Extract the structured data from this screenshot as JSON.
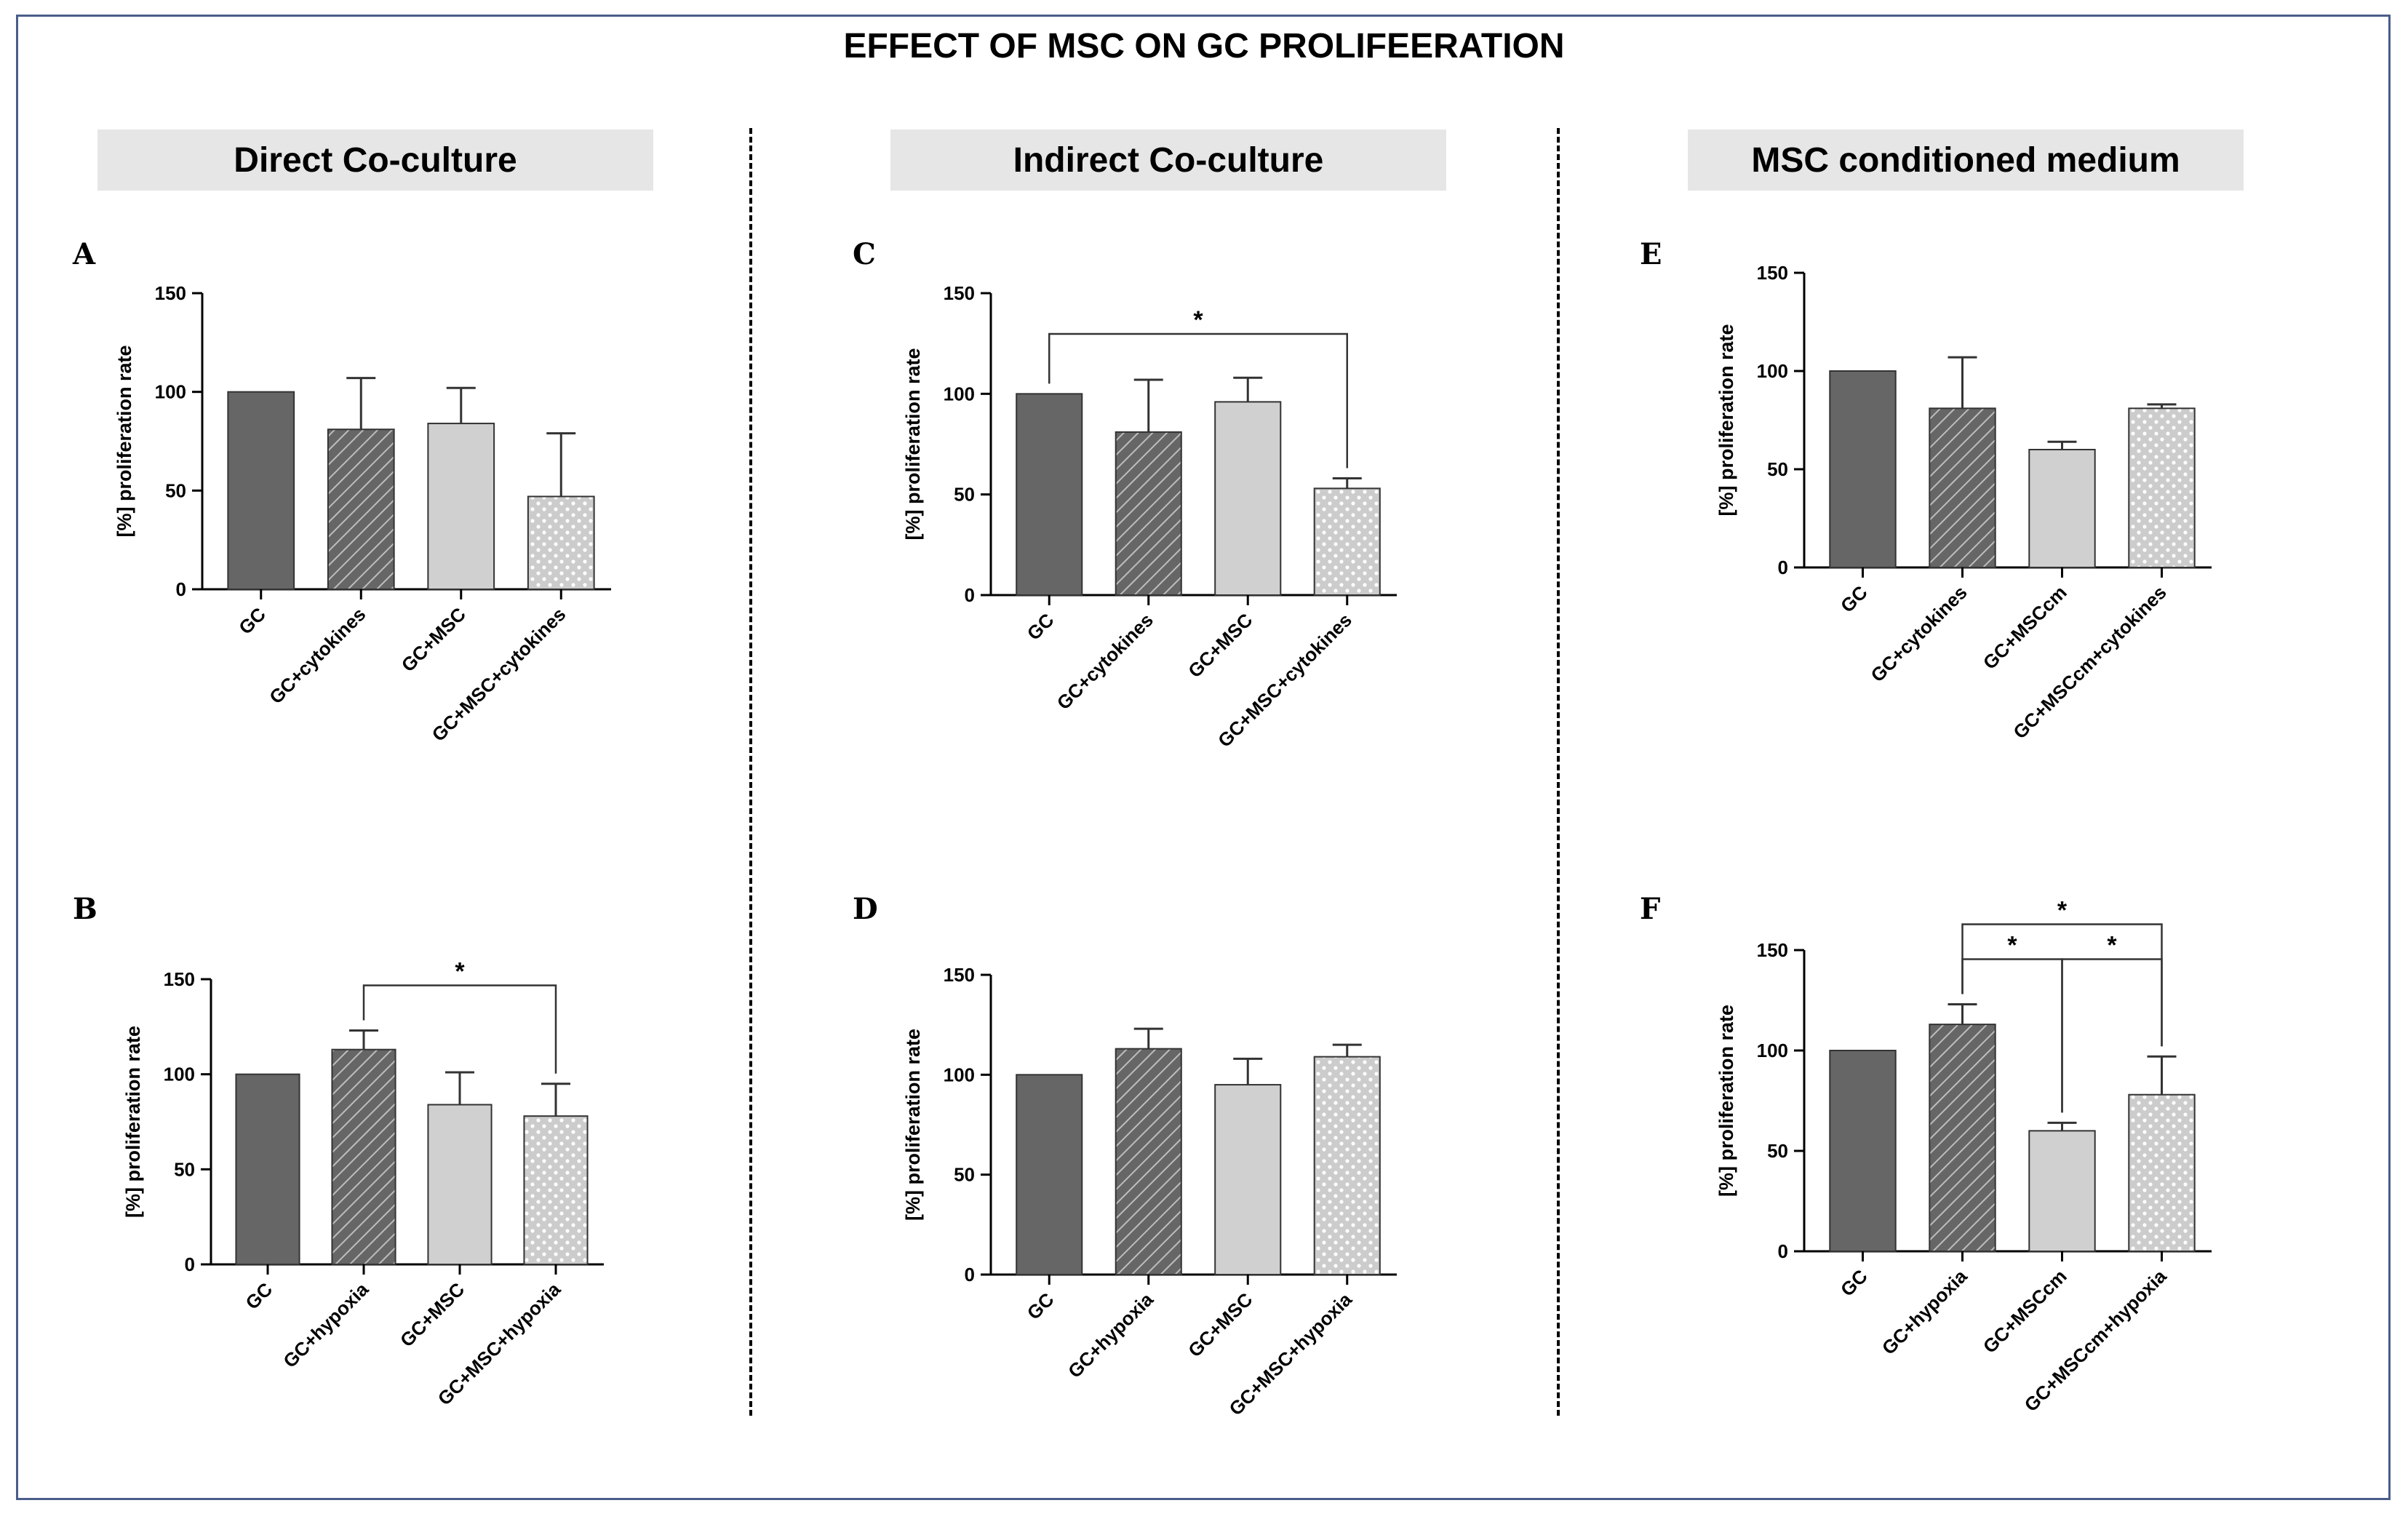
{
  "title": "EFFECT OF MSC ON GC PROLIFEERATION",
  "columns": [
    "Direct Co-culture",
    "Indirect Co-culture",
    "MSC conditioned medium"
  ],
  "colors": {
    "dark": "#666666",
    "hatch_bg": "#666666",
    "light": "#d0d0d0",
    "dotted_bg": "#cccccc",
    "line": "#000000",
    "header_bg": "#e6e6e6"
  },
  "chart_data": [
    {
      "panel": "A",
      "type": "bar",
      "title": "",
      "xlabel": "",
      "ylabel": "[%] proliferation rate",
      "ylim": [
        0,
        150
      ],
      "yticks": [
        0,
        50,
        100,
        150
      ],
      "categories": [
        "GC",
        "GC+cytokines",
        "GC+MSC",
        "GC+MSC+cytokines"
      ],
      "values": [
        100,
        81,
        84,
        47
      ],
      "errors": [
        0,
        26,
        18,
        32
      ],
      "patterns": [
        "dark",
        "hatch",
        "light",
        "dotted"
      ],
      "significance": []
    },
    {
      "panel": "B",
      "type": "bar",
      "title": "",
      "xlabel": "",
      "ylabel": "[%] proliferation rate",
      "ylim": [
        0,
        150
      ],
      "yticks": [
        0,
        50,
        100,
        150
      ],
      "categories": [
        "GC",
        "GC+hypoxia",
        "GC+MSC",
        "GC+MSC+hypoxia"
      ],
      "values": [
        100,
        113,
        84,
        78
      ],
      "errors": [
        0,
        10,
        17,
        17
      ],
      "patterns": [
        "dark",
        "hatch",
        "light",
        "dotted"
      ],
      "significance": [
        {
          "from": 1,
          "to": 3,
          "label": "*",
          "level": 0
        }
      ]
    },
    {
      "panel": "C",
      "type": "bar",
      "title": "",
      "xlabel": "",
      "ylabel": "[%] proliferation rate",
      "ylim": [
        0,
        150
      ],
      "yticks": [
        0,
        50,
        100,
        150
      ],
      "categories": [
        "GC",
        "GC+cytokines",
        "GC+MSC",
        "GC+MSC+cytokines"
      ],
      "values": [
        100,
        81,
        96,
        53
      ],
      "errors": [
        0,
        26,
        12,
        5
      ],
      "patterns": [
        "dark",
        "hatch",
        "light",
        "dotted"
      ],
      "significance": [
        {
          "from": 0,
          "to": 3,
          "label": "*",
          "level": 0
        }
      ]
    },
    {
      "panel": "D",
      "type": "bar",
      "title": "",
      "xlabel": "",
      "ylabel": "[%] proliferation rate",
      "ylim": [
        0,
        150
      ],
      "yticks": [
        0,
        50,
        100,
        150
      ],
      "categories": [
        "GC",
        "GC+hypoxia",
        "GC+MSC",
        "GC+MSC+hypoxia"
      ],
      "values": [
        100,
        113,
        95,
        109
      ],
      "errors": [
        0,
        10,
        13,
        6
      ],
      "patterns": [
        "dark",
        "hatch",
        "light",
        "dotted"
      ],
      "significance": []
    },
    {
      "panel": "E",
      "type": "bar",
      "title": "",
      "xlabel": "",
      "ylabel": "[%] proliferation rate",
      "ylim": [
        0,
        150
      ],
      "yticks": [
        0,
        50,
        100,
        150
      ],
      "categories": [
        "GC",
        "GC+cytokines",
        "GC+MSCcm",
        "GC+MSCcm+cytokines"
      ],
      "values": [
        100,
        81,
        60,
        81
      ],
      "errors": [
        0,
        26,
        4,
        2
      ],
      "patterns": [
        "dark",
        "hatch",
        "light",
        "dotted"
      ],
      "significance": []
    },
    {
      "panel": "F",
      "type": "bar",
      "title": "",
      "xlabel": "",
      "ylabel": "[%] proliferation rate",
      "ylim": [
        0,
        150
      ],
      "yticks": [
        0,
        50,
        100,
        150
      ],
      "categories": [
        "GC",
        "GC+hypoxia",
        "GC+MSCcm",
        "GC+MSCcm+hypoxia"
      ],
      "values": [
        100,
        113,
        60,
        78
      ],
      "errors": [
        0,
        10,
        4,
        19
      ],
      "patterns": [
        "dark",
        "hatch",
        "light",
        "dotted"
      ],
      "significance": [
        {
          "from": 1,
          "to": 2,
          "label": "*",
          "level": 0
        },
        {
          "from": 2,
          "to": 3,
          "label": "*",
          "level": 0
        },
        {
          "from": 1,
          "to": 3,
          "label": "*",
          "level": 1
        }
      ]
    }
  ]
}
